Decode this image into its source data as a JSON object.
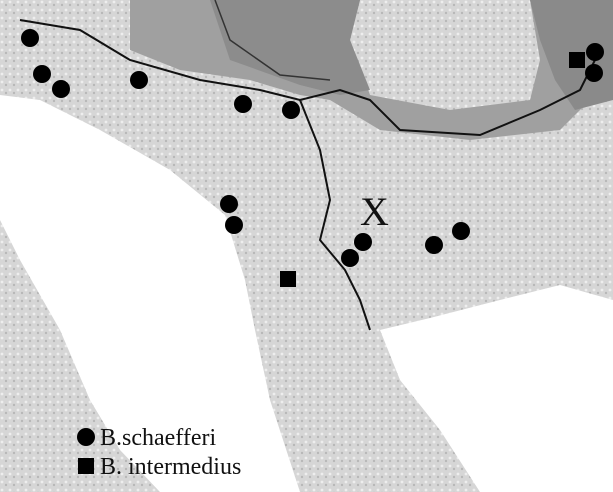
{
  "annotations": {
    "x_mark": "X"
  },
  "legend": {
    "items": [
      {
        "label": "B.schaefferi"
      },
      {
        "label": "B. intermedius"
      }
    ]
  }
}
